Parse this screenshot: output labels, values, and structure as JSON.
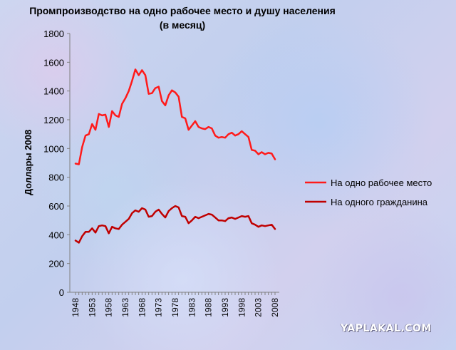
{
  "chart_data": {
    "type": "line",
    "title_line1": "Промпроизводство на одно рабочее место и душу населения",
    "title_line2": "(в месяц)",
    "ylabel": "Доллары 2008",
    "xlabel": "",
    "ylim": [
      0,
      1800
    ],
    "yticks": [
      0,
      200,
      400,
      600,
      800,
      1000,
      1200,
      1400,
      1600,
      1800
    ],
    "xticks": [
      1948,
      1953,
      1958,
      1963,
      1968,
      1973,
      1978,
      1983,
      1988,
      1993,
      1998,
      2003,
      2008
    ],
    "xlim": [
      1948,
      2008
    ],
    "grid": false,
    "legend_position": "right",
    "x": [
      1948,
      1949,
      1950,
      1951,
      1952,
      1953,
      1954,
      1955,
      1956,
      1957,
      1958,
      1959,
      1960,
      1961,
      1962,
      1963,
      1964,
      1965,
      1966,
      1967,
      1968,
      1969,
      1970,
      1971,
      1972,
      1973,
      1974,
      1975,
      1976,
      1977,
      1978,
      1979,
      1980,
      1981,
      1982,
      1983,
      1984,
      1985,
      1986,
      1987,
      1988,
      1989,
      1990,
      1991,
      1992,
      1993,
      1994,
      1995,
      1996,
      1997,
      1998,
      1999,
      2000,
      2001,
      2002,
      2003,
      2004,
      2005,
      2006,
      2007,
      2008
    ],
    "series": [
      {
        "name": "На одно рабочее место",
        "color": "#ff1a1a",
        "values": [
          895,
          890,
          1010,
          1090,
          1100,
          1170,
          1130,
          1240,
          1230,
          1235,
          1150,
          1260,
          1230,
          1220,
          1310,
          1350,
          1400,
          1470,
          1550,
          1510,
          1545,
          1510,
          1380,
          1385,
          1420,
          1430,
          1330,
          1300,
          1370,
          1405,
          1390,
          1360,
          1220,
          1210,
          1130,
          1160,
          1190,
          1150,
          1140,
          1135,
          1150,
          1140,
          1090,
          1075,
          1080,
          1075,
          1100,
          1110,
          1090,
          1100,
          1120,
          1100,
          1080,
          990,
          985,
          960,
          975,
          960,
          970,
          965,
          925
        ]
      },
      {
        "name": "На одного гражданина",
        "color": "#c00000",
        "values": [
          360,
          345,
          390,
          420,
          420,
          445,
          415,
          460,
          465,
          460,
          410,
          455,
          445,
          440,
          470,
          490,
          510,
          550,
          570,
          560,
          585,
          575,
          525,
          530,
          560,
          575,
          545,
          520,
          565,
          585,
          600,
          590,
          530,
          525,
          480,
          500,
          525,
          515,
          525,
          535,
          545,
          540,
          520,
          500,
          500,
          495,
          515,
          520,
          510,
          520,
          530,
          525,
          530,
          480,
          470,
          455,
          465,
          460,
          465,
          470,
          440
        ]
      }
    ]
  },
  "watermark": "YAPLAKAL.COM"
}
